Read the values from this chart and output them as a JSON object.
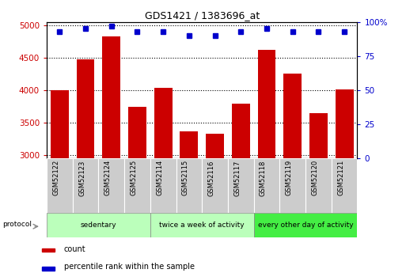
{
  "title": "GDS1421 / 1383696_at",
  "samples": [
    "GSM52122",
    "GSM52123",
    "GSM52124",
    "GSM52125",
    "GSM52114",
    "GSM52115",
    "GSM52116",
    "GSM52117",
    "GSM52118",
    "GSM52119",
    "GSM52120",
    "GSM52121"
  ],
  "counts": [
    4000,
    4470,
    4830,
    3740,
    4040,
    3360,
    3330,
    3790,
    4620,
    4250,
    3650,
    4010
  ],
  "percentile": [
    93,
    95,
    97,
    93,
    93,
    90,
    90,
    93,
    95,
    93,
    93,
    93
  ],
  "ylim_left": [
    2950,
    5050
  ],
  "ylim_right": [
    0,
    100
  ],
  "yticks_left": [
    3000,
    3500,
    4000,
    4500,
    5000
  ],
  "yticks_right": [
    0,
    25,
    50,
    75,
    100
  ],
  "bar_color": "#cc0000",
  "dot_color": "#0000cc",
  "bar_bottom": 2950,
  "group_defs": [
    {
      "start": 0,
      "end": 4,
      "label": "sedentary",
      "color": "#bbffbb"
    },
    {
      "start": 4,
      "end": 8,
      "label": "twice a week of activity",
      "color": "#bbffbb"
    },
    {
      "start": 8,
      "end": 12,
      "label": "every other day of activity",
      "color": "#44ee44"
    }
  ],
  "sample_bg": "#cccccc",
  "background_plot": "#ffffff"
}
